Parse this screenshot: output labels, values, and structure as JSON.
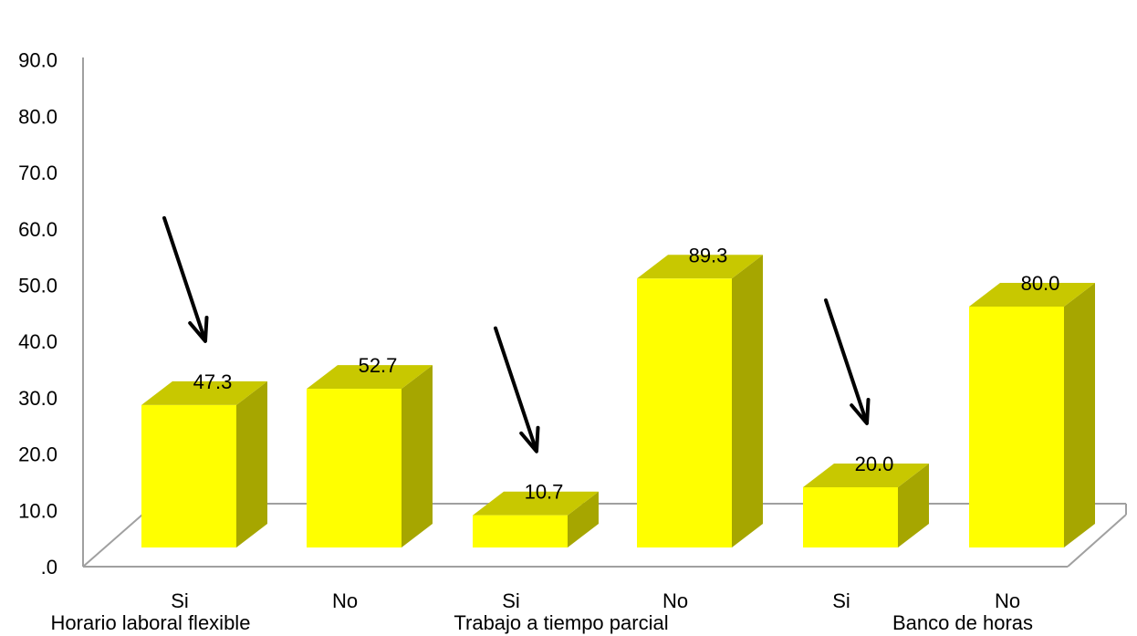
{
  "chart_data": {
    "type": "bar",
    "title": "",
    "xlabel": "",
    "ylabel": "",
    "ylim": [
      0,
      90
    ],
    "yticks": [
      ".0",
      "10.0",
      "20.0",
      "30.0",
      "40.0",
      "50.0",
      "60.0",
      "70.0",
      "80.0",
      "90.0"
    ],
    "grid": false,
    "legend": "none",
    "style": "3d",
    "groups": [
      "Horario laboral flexible",
      "Trabajo a tiempo parcial",
      "Banco de horas"
    ],
    "categories": [
      "Si",
      "No",
      "Si",
      "No",
      "Si",
      "No"
    ],
    "group_index": [
      0,
      0,
      1,
      1,
      2,
      2
    ],
    "values": [
      47.3,
      52.7,
      10.7,
      89.3,
      20.0,
      80.0
    ],
    "value_labels": [
      "47.3",
      "52.7",
      "10.7",
      "89.3",
      "20.0",
      "80.0"
    ],
    "arrows_on": [
      0,
      2,
      4
    ],
    "colors": {
      "bar_front": "#ffff00",
      "bar_top": "#c8c800",
      "bar_side": "#a6a600",
      "axis": "#a0a0a0",
      "arrow": "#000000"
    }
  }
}
